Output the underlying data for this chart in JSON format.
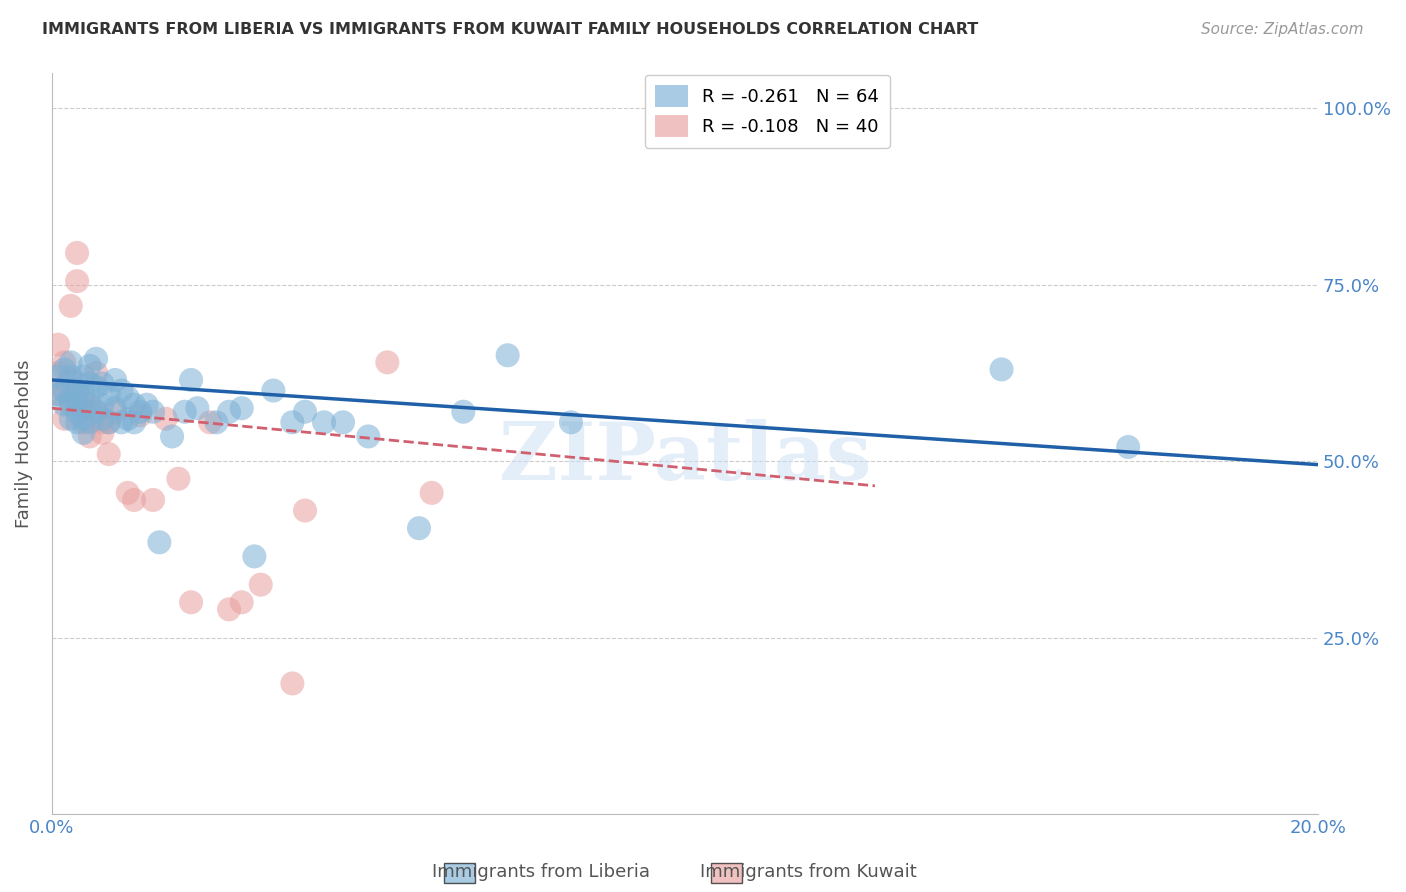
{
  "title": "IMMIGRANTS FROM LIBERIA VS IMMIGRANTS FROM KUWAIT FAMILY HOUSEHOLDS CORRELATION CHART",
  "source": "Source: ZipAtlas.com",
  "ylabel": "Family Households",
  "xlim": [
    0.0,
    0.2
  ],
  "ylim": [
    0.0,
    1.05
  ],
  "xticks": [
    0.0,
    0.04,
    0.08,
    0.12,
    0.16,
    0.2
  ],
  "xticklabels": [
    "0.0%",
    "",
    "",
    "",
    "",
    "20.0%"
  ],
  "yticks": [
    0.0,
    0.25,
    0.5,
    0.75,
    1.0
  ],
  "yticklabels_right": [
    "",
    "25.0%",
    "50.0%",
    "75.0%",
    "100.0%"
  ],
  "liberia_color": "#7bafd4",
  "kuwait_color": "#e8a0a0",
  "liberia_line_color": "#2060a8",
  "kuwait_line_color": "#d06070",
  "watermark": "ZIPatlas",
  "liberia_legend": "R = -0.261   N = 64",
  "kuwait_legend": "R = -0.108   N = 40",
  "bottom_label_liberia": "Immigrants from Liberia",
  "bottom_label_kuwait": "Immigrants from Kuwait",
  "liberia_line_x": [
    0.0,
    0.2
  ],
  "liberia_line_y": [
    0.615,
    0.495
  ],
  "kuwait_line_x": [
    0.0,
    0.13
  ],
  "kuwait_line_y": [
    0.575,
    0.465
  ],
  "liberia_scatter_x": [
    0.001,
    0.001,
    0.002,
    0.002,
    0.002,
    0.003,
    0.003,
    0.003,
    0.003,
    0.003,
    0.004,
    0.004,
    0.004,
    0.004,
    0.004,
    0.005,
    0.005,
    0.005,
    0.005,
    0.005,
    0.006,
    0.006,
    0.006,
    0.006,
    0.007,
    0.007,
    0.007,
    0.008,
    0.008,
    0.008,
    0.009,
    0.009,
    0.01,
    0.01,
    0.011,
    0.011,
    0.012,
    0.012,
    0.013,
    0.013,
    0.014,
    0.015,
    0.016,
    0.017,
    0.019,
    0.021,
    0.022,
    0.023,
    0.026,
    0.028,
    0.03,
    0.032,
    0.035,
    0.038,
    0.04,
    0.043,
    0.046,
    0.05,
    0.058,
    0.065,
    0.072,
    0.082,
    0.15,
    0.17
  ],
  "liberia_scatter_y": [
    0.595,
    0.62,
    0.58,
    0.6,
    0.63,
    0.59,
    0.62,
    0.56,
    0.64,
    0.58,
    0.6,
    0.61,
    0.57,
    0.585,
    0.555,
    0.62,
    0.595,
    0.575,
    0.56,
    0.54,
    0.635,
    0.61,
    0.58,
    0.555,
    0.645,
    0.605,
    0.57,
    0.61,
    0.58,
    0.56,
    0.595,
    0.555,
    0.615,
    0.575,
    0.6,
    0.555,
    0.59,
    0.56,
    0.58,
    0.555,
    0.57,
    0.58,
    0.57,
    0.385,
    0.535,
    0.57,
    0.615,
    0.575,
    0.555,
    0.57,
    0.575,
    0.365,
    0.6,
    0.555,
    0.57,
    0.555,
    0.555,
    0.535,
    0.405,
    0.57,
    0.65,
    0.555,
    0.63,
    0.52
  ],
  "kuwait_scatter_x": [
    0.001,
    0.001,
    0.001,
    0.002,
    0.002,
    0.002,
    0.003,
    0.003,
    0.003,
    0.004,
    0.004,
    0.004,
    0.004,
    0.005,
    0.005,
    0.005,
    0.006,
    0.006,
    0.007,
    0.007,
    0.008,
    0.008,
    0.009,
    0.009,
    0.01,
    0.012,
    0.013,
    0.014,
    0.016,
    0.018,
    0.02,
    0.022,
    0.025,
    0.028,
    0.03,
    0.033,
    0.038,
    0.04,
    0.053,
    0.06
  ],
  "kuwait_scatter_y": [
    0.595,
    0.625,
    0.665,
    0.56,
    0.6,
    0.64,
    0.585,
    0.615,
    0.72,
    0.58,
    0.6,
    0.755,
    0.795,
    0.575,
    0.555,
    0.59,
    0.58,
    0.535,
    0.57,
    0.625,
    0.555,
    0.54,
    0.555,
    0.51,
    0.57,
    0.455,
    0.445,
    0.565,
    0.445,
    0.56,
    0.475,
    0.3,
    0.555,
    0.29,
    0.3,
    0.325,
    0.185,
    0.43,
    0.64,
    0.455
  ]
}
